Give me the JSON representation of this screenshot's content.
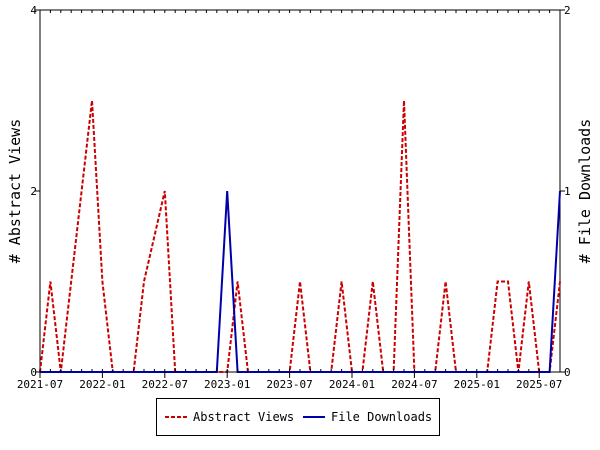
{
  "chart_data": {
    "type": "line",
    "x": [
      "2021-07",
      "2021-08",
      "2021-09",
      "2021-10",
      "2021-11",
      "2021-12",
      "2022-01",
      "2022-02",
      "2022-03",
      "2022-04",
      "2022-05",
      "2022-06",
      "2022-07",
      "2022-08",
      "2022-09",
      "2022-10",
      "2022-11",
      "2022-12",
      "2023-01",
      "2023-02",
      "2023-03",
      "2023-04",
      "2023-05",
      "2023-06",
      "2023-07",
      "2023-08",
      "2023-09",
      "2023-10",
      "2023-11",
      "2023-12",
      "2024-01",
      "2024-02",
      "2024-03",
      "2024-04",
      "2024-05",
      "2024-06",
      "2024-07",
      "2024-08",
      "2024-09",
      "2024-10",
      "2024-11",
      "2024-12",
      "2025-01",
      "2025-02",
      "2025-03",
      "2025-04",
      "2025-05",
      "2025-06",
      "2025-07",
      "2025-08",
      "2025-09"
    ],
    "xticks": [
      "2021-07",
      "2022-01",
      "2022-07",
      "2023-01",
      "2023-07",
      "2024-01",
      "2024-07",
      "2025-01",
      "2025-07"
    ],
    "series": [
      {
        "name": "Abstract Views",
        "axis": "left",
        "color": "#cc0000",
        "style": "dashed",
        "values": [
          0,
          1,
          0,
          1,
          2,
          3,
          1,
          0,
          0,
          0,
          1,
          1.5,
          2,
          0,
          0,
          0,
          0,
          0,
          0,
          1,
          0,
          0,
          0,
          0,
          0,
          1,
          0,
          0,
          0,
          1,
          0,
          0,
          1,
          0,
          0,
          3,
          0,
          0,
          0,
          1,
          0,
          0,
          0,
          0,
          1,
          1,
          0,
          1,
          0,
          0,
          1
        ]
      },
      {
        "name": "File Downloads",
        "axis": "right",
        "color": "#0000aa",
        "style": "solid",
        "values": [
          0,
          0,
          0,
          0,
          0,
          0,
          0,
          0,
          0,
          0,
          0,
          0,
          0,
          0,
          0,
          0,
          0,
          0,
          1,
          0,
          0,
          0,
          0,
          0,
          0,
          0,
          0,
          0,
          0,
          0,
          0,
          0,
          0,
          0,
          0,
          0,
          0,
          0,
          0,
          0,
          0,
          0,
          0,
          0,
          0,
          0,
          0,
          0,
          0,
          0,
          1
        ]
      }
    ],
    "ylabel": "# Abstract Views",
    "y2label": "# File Downloads",
    "ylim": [
      0,
      4
    ],
    "y2lim": [
      0,
      2
    ],
    "yticks": [
      "0",
      "2",
      "4"
    ],
    "y2ticks": [
      "0",
      "1",
      "2"
    ],
    "grid": false,
    "legend_position": "bottom"
  }
}
